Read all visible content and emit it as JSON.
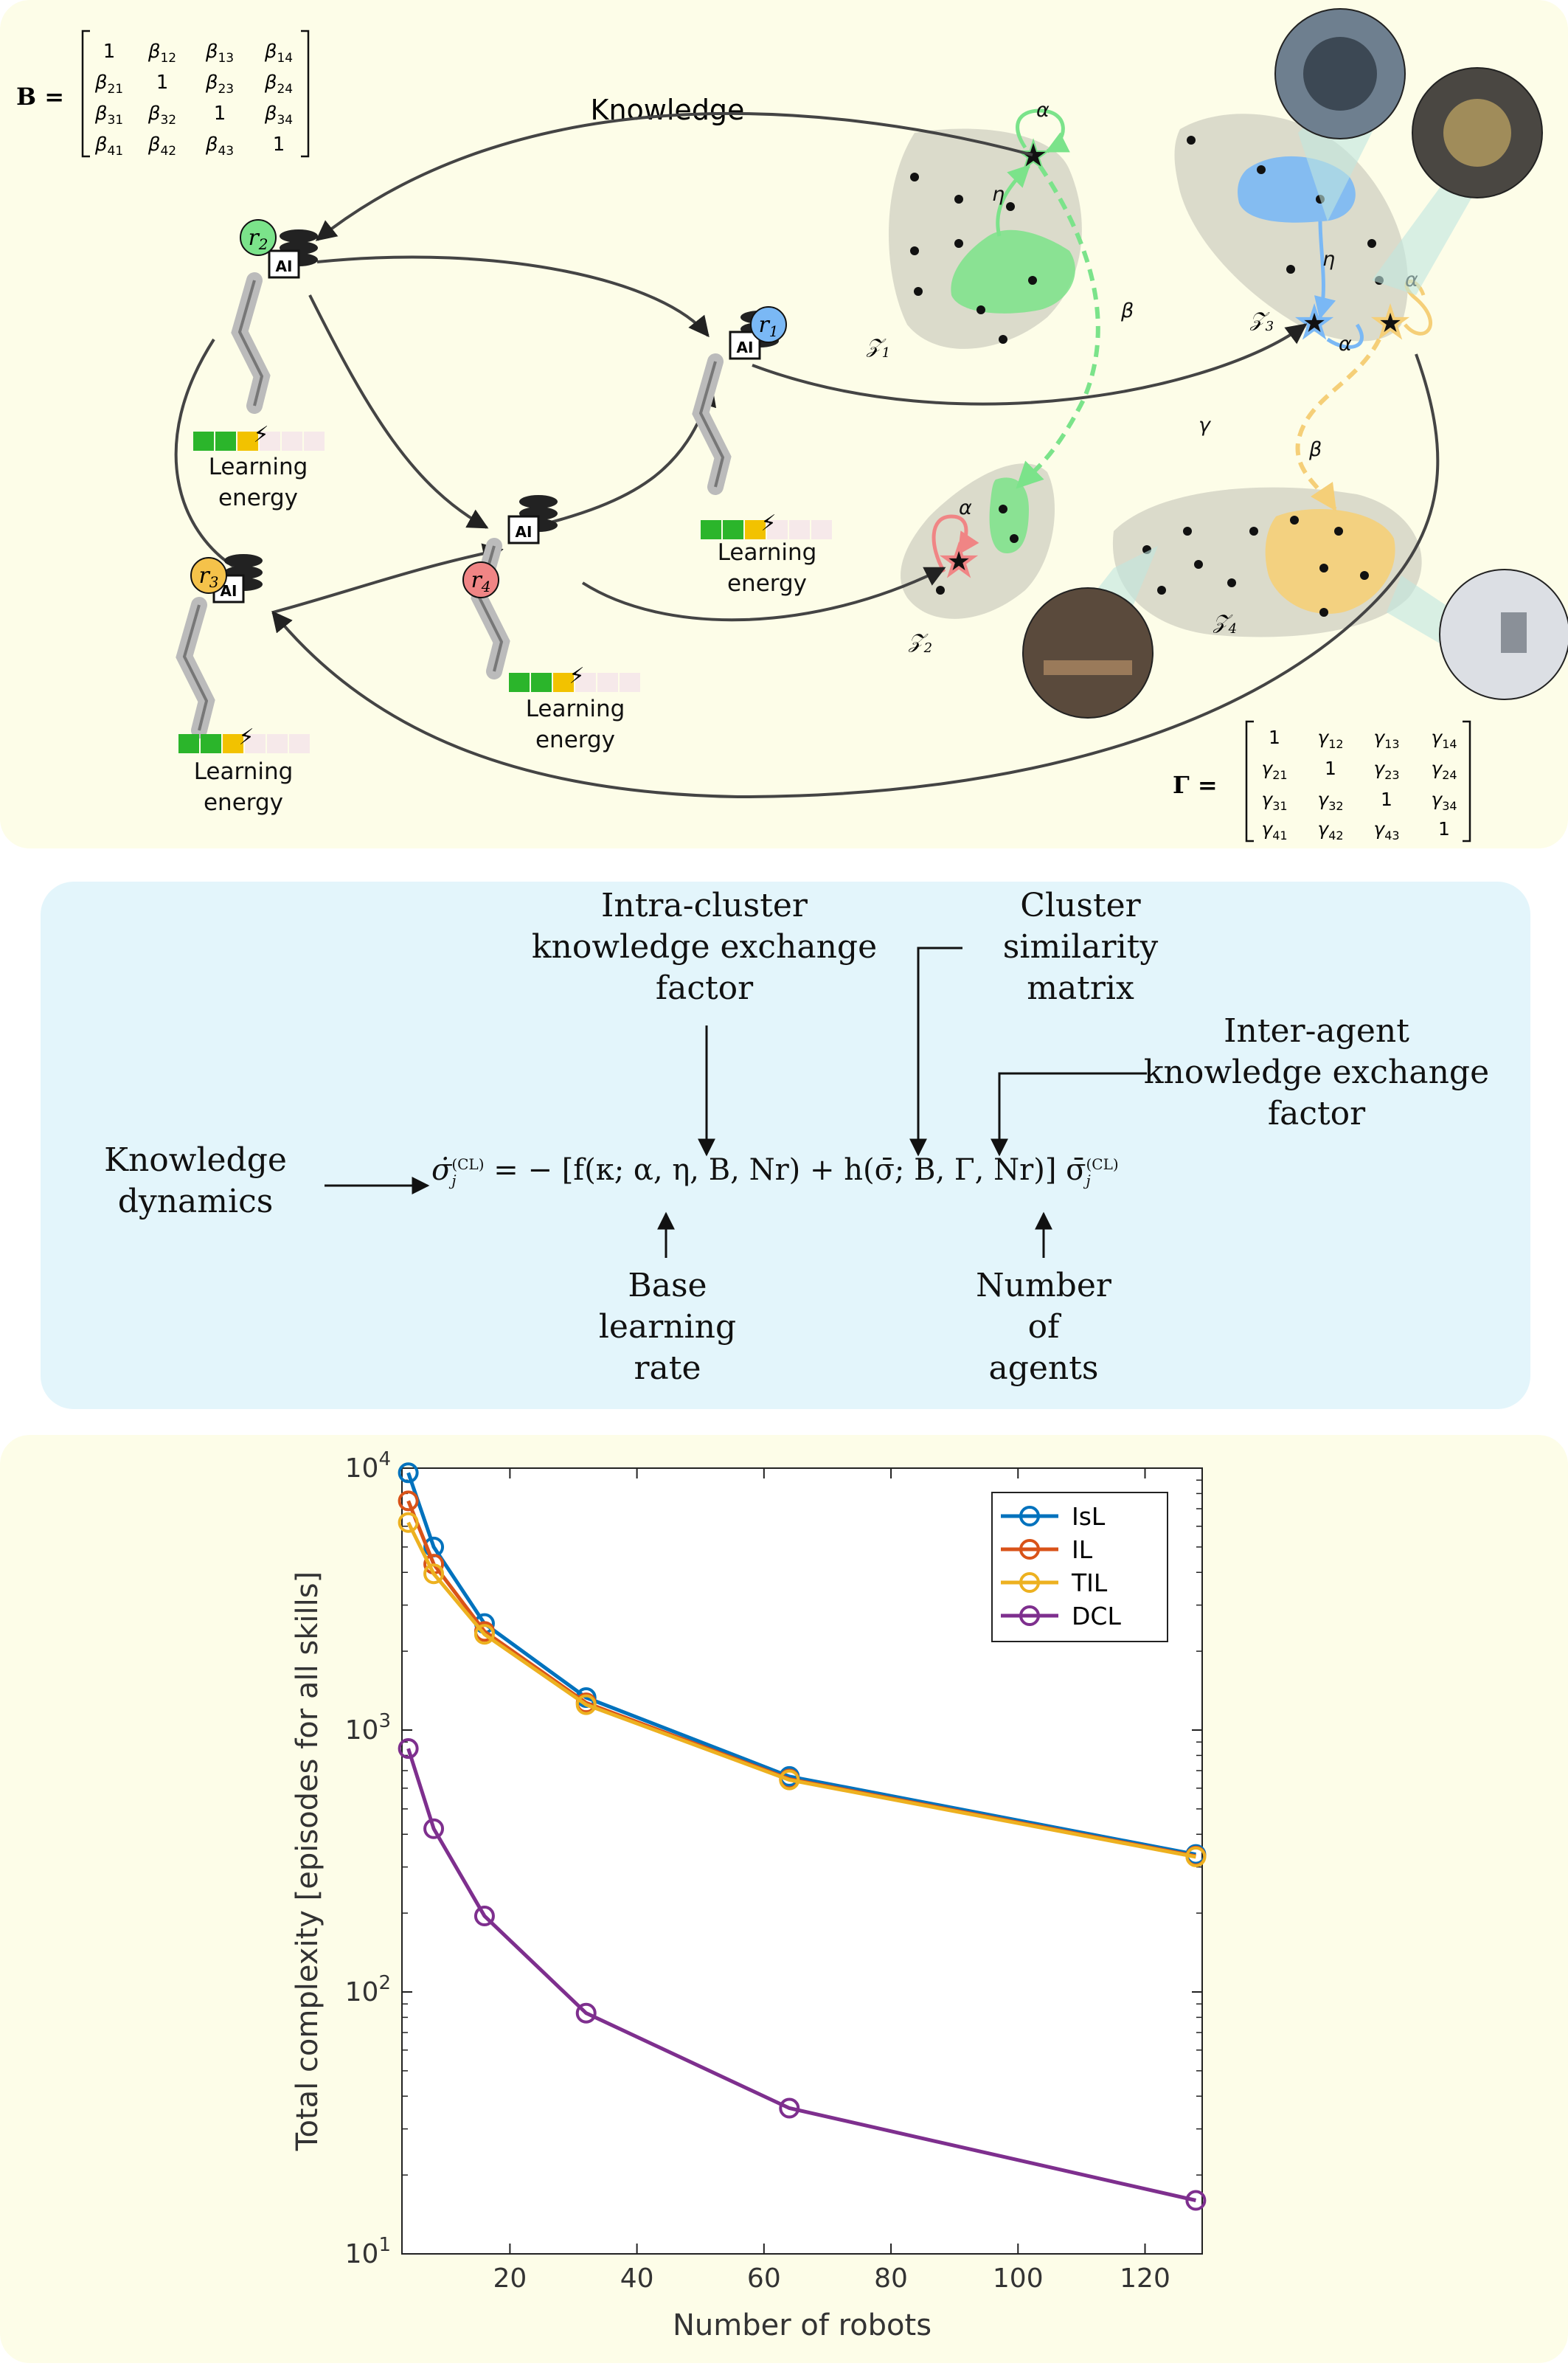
{
  "top": {
    "knowledge_label": "Knowledge",
    "matrix_B": {
      "name": "B =",
      "rows": [
        [
          "1",
          "β12",
          "β13",
          "β14"
        ],
        [
          "β21",
          "1",
          "β23",
          "β24"
        ],
        [
          "β31",
          "β32",
          "1",
          "β34"
        ],
        [
          "β41",
          "β42",
          "β43",
          "1"
        ]
      ]
    },
    "matrix_Gamma": {
      "name": "Γ =",
      "rows": [
        [
          "1",
          "γ12",
          "γ13",
          "γ14"
        ],
        [
          "γ21",
          "1",
          "γ23",
          "γ24"
        ],
        [
          "γ31",
          "γ32",
          "1",
          "γ34"
        ],
        [
          "γ41",
          "γ42",
          "γ43",
          "1"
        ]
      ]
    },
    "robots": [
      {
        "id": "r1",
        "label": "r1",
        "color": "#7ab8f5",
        "energy_line1": "Learning",
        "energy_line2": "energy",
        "energy_filled": 3
      },
      {
        "id": "r2",
        "label": "r2",
        "color": "#7be38a",
        "energy_line1": "Learning",
        "energy_line2": "energy",
        "energy_filled": 3
      },
      {
        "id": "r3",
        "label": "r3",
        "color": "#f5c24a",
        "energy_line1": "Learning",
        "energy_line2": "energy",
        "energy_filled": 3
      },
      {
        "id": "r4",
        "label": "r4",
        "color": "#f08585",
        "energy_line1": "Learning",
        "energy_line2": "energy",
        "energy_filled": 3
      }
    ],
    "chip_label": "AI",
    "clusters": [
      "Z1",
      "Z2",
      "Z3",
      "Z4"
    ],
    "greek": {
      "alpha": "α",
      "beta": "β",
      "eta": "η",
      "gamma": "γ"
    },
    "colors": {
      "green": "#7be38a",
      "blue": "#7ab8f5",
      "yellow": "#f5cf78",
      "red": "#f08585",
      "cluster_gray": "#cfcfc2"
    }
  },
  "middle": {
    "equation": {
      "lhs": "σ̇",
      "lhs_sub": "j",
      "lhs_sup": "(CL)",
      "body": "= − [f(κ; α, η, B, Nr) + h(σ̄; B, Γ, Nr)] σ̄",
      "rhs_sub": "j",
      "rhs_sup": "(CL)"
    },
    "labels": {
      "knowledge_dynamics": [
        "Knowledge",
        "dynamics"
      ],
      "intra_cluster": [
        "Intra-cluster",
        "knowledge exchange",
        "factor"
      ],
      "cluster_similarity": [
        "Cluster",
        "similarity",
        "matrix"
      ],
      "inter_agent": [
        "Inter-agent",
        "knowledge exchange",
        "factor"
      ],
      "base_learning_rate": [
        "Base",
        "learning",
        "rate"
      ],
      "number_of_agents": [
        "Number",
        "of",
        "agents"
      ]
    }
  },
  "chart_data": {
    "type": "line",
    "ylabel": "Total complexity [episodes for all skills]",
    "xlabel": "Number of robots",
    "x": [
      4,
      8,
      16,
      32,
      64,
      128
    ],
    "xlim": [
      3,
      129
    ],
    "ylim": [
      10,
      10000
    ],
    "yscale": "log",
    "xticks": [
      "20",
      "40",
      "60",
      "80",
      "100",
      "120"
    ],
    "yticks": [
      "10^1",
      "10^2",
      "10^3",
      "10^4"
    ],
    "legend_position": "top-right",
    "series": [
      {
        "name": "IsL",
        "color": "#0072bd",
        "values": [
          9600,
          5000,
          2550,
          1330,
          665,
          335
        ]
      },
      {
        "name": "IL",
        "color": "#d95319",
        "values": [
          7500,
          4300,
          2380,
          1270,
          650,
          330
        ]
      },
      {
        "name": "TIL",
        "color": "#edb120",
        "values": [
          6200,
          3950,
          2320,
          1250,
          645,
          328
        ]
      },
      {
        "name": "DCL",
        "color": "#7e2f8e",
        "values": [
          850,
          420,
          195,
          83,
          36,
          16
        ]
      }
    ]
  }
}
